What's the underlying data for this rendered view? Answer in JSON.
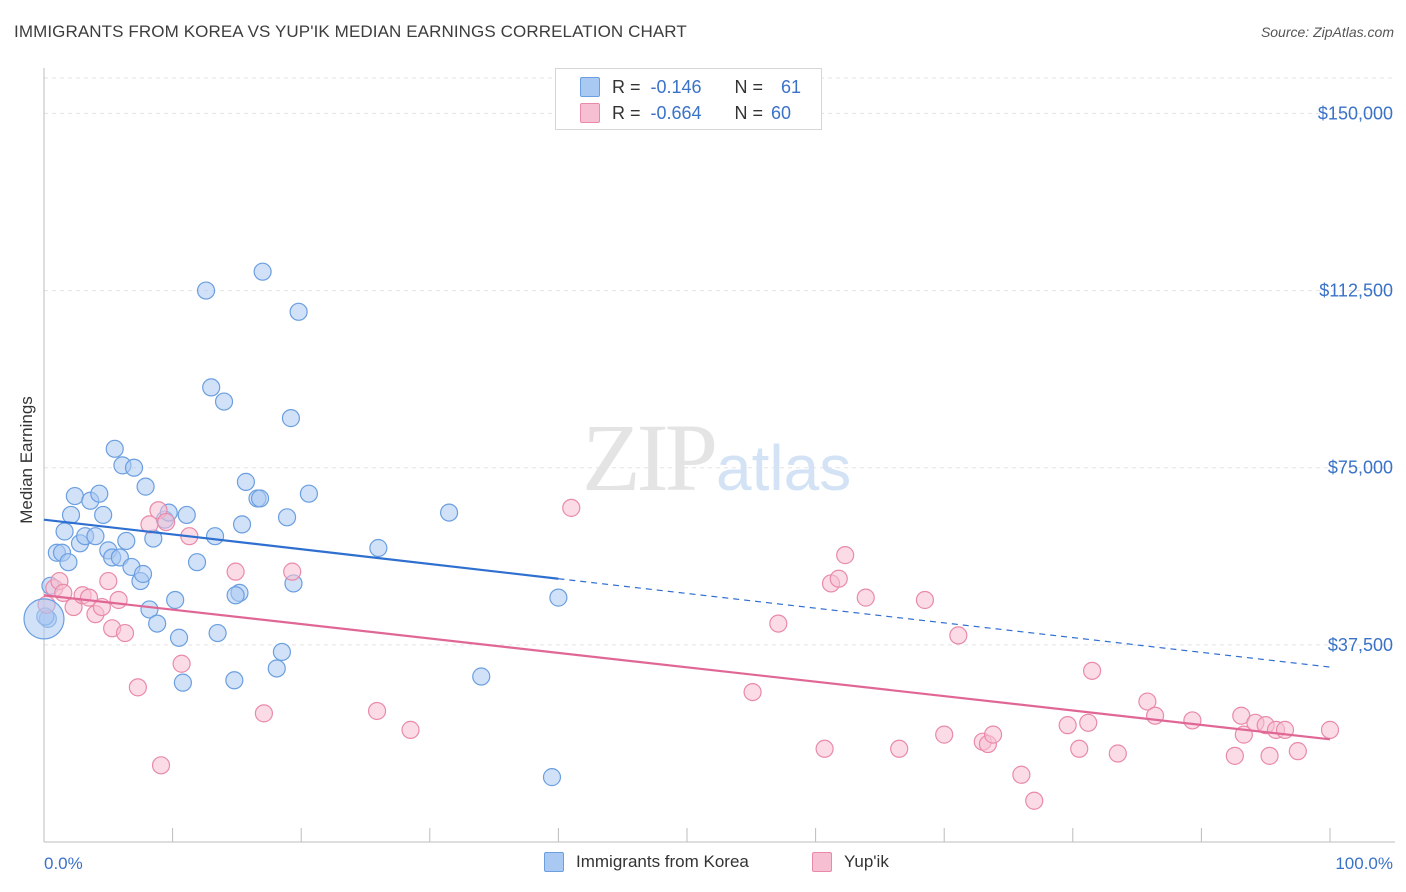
{
  "header": {
    "title": "IMMIGRANTS FROM KOREA VS YUP'IK MEDIAN EARNINGS CORRELATION CHART",
    "source": "Source: ZipAtlas.com"
  },
  "watermark": {
    "zip": "ZIP",
    "atlas": "atlas"
  },
  "stats": [
    {
      "r_label": "R =",
      "r_value": "-0.146",
      "n_label": "N =",
      "n_value": "61",
      "color": "#a9c8f2",
      "border": "#6b9fe0"
    },
    {
      "r_label": "R =",
      "r_value": "-0.664",
      "n_label": "N =",
      "n_value": "60",
      "color": "#f7c0d2",
      "border": "#e98aa9"
    }
  ],
  "legend": [
    {
      "label": "Immigrants from Korea",
      "color": "#a9c8f2",
      "border": "#6b9fe0"
    },
    {
      "label": "Yup'ik",
      "color": "#f7c0d2",
      "border": "#e98aa9"
    }
  ],
  "chart_data": {
    "type": "scatter",
    "xlabel": "",
    "ylabel": "Median Earnings",
    "xlim": [
      0,
      100
    ],
    "ylim": [
      0,
      157500
    ],
    "x_tick_labels": [
      "0.0%",
      "100.0%"
    ],
    "y_ticks": [
      37500,
      75000,
      112500,
      150000
    ],
    "y_tick_labels": [
      "$37,500",
      "$75,000",
      "$112,500",
      "$150,000"
    ],
    "grid": "horizontal dashed",
    "legend_position": "bottom",
    "series": [
      {
        "name": "Immigrants from Korea",
        "color": "#a9c8f2",
        "stroke": "#6b9fe0",
        "line_color": "#2f6fd0",
        "trend": {
          "x0": 0,
          "y0": 64000,
          "x1": 40,
          "y1": 51500,
          "x_end": 100,
          "y_end": 32800,
          "dashed_after": 40
        },
        "points": [
          [
            0.3,
            43000
          ],
          [
            0.5,
            50000
          ],
          [
            1,
            57000
          ],
          [
            1.4,
            57000
          ],
          [
            1.6,
            61500
          ],
          [
            1.9,
            55000
          ],
          [
            2.1,
            65000
          ],
          [
            2.4,
            69000
          ],
          [
            2.8,
            59000
          ],
          [
            3.2,
            60500
          ],
          [
            3.6,
            68000
          ],
          [
            4.0,
            60500
          ],
          [
            4.3,
            69500
          ],
          [
            4.6,
            65000
          ],
          [
            5.0,
            57500
          ],
          [
            5.3,
            56000
          ],
          [
            5.5,
            79000
          ],
          [
            5.9,
            56000
          ],
          [
            6.1,
            75500
          ],
          [
            6.4,
            59500
          ],
          [
            6.8,
            54000
          ],
          [
            7.0,
            75000
          ],
          [
            7.5,
            51000
          ],
          [
            7.7,
            52500
          ],
          [
            7.9,
            71000
          ],
          [
            8.2,
            45000
          ],
          [
            8.5,
            60000
          ],
          [
            8.8,
            42000
          ],
          [
            9.4,
            64000
          ],
          [
            9.7,
            65500
          ],
          [
            10.2,
            47000
          ],
          [
            10.5,
            39000
          ],
          [
            10.8,
            29500
          ],
          [
            11.1,
            65000
          ],
          [
            11.9,
            55000
          ],
          [
            12.6,
            112500
          ],
          [
            13.0,
            92000
          ],
          [
            13.3,
            60500
          ],
          [
            13.5,
            40000
          ],
          [
            14.0,
            89000
          ],
          [
            14.8,
            30000
          ],
          [
            15.2,
            48500
          ],
          [
            15.4,
            63000
          ],
          [
            15.7,
            72000
          ],
          [
            16.6,
            68500
          ],
          [
            16.8,
            68500
          ],
          [
            17.0,
            116500
          ],
          [
            18.1,
            32500
          ],
          [
            18.5,
            36000
          ],
          [
            18.9,
            64500
          ],
          [
            19.2,
            85500
          ],
          [
            19.4,
            50500
          ],
          [
            19.8,
            108000
          ],
          [
            20.6,
            69500
          ],
          [
            26.0,
            58000
          ],
          [
            31.5,
            65500
          ],
          [
            34.0,
            30800
          ],
          [
            39.5,
            9500
          ],
          [
            40.0,
            47500
          ],
          [
            0.1,
            43500
          ],
          [
            14.9,
            48000
          ]
        ]
      },
      {
        "name": "Yup'ik",
        "color": "#f7c0d2",
        "stroke": "#e98aa9",
        "line_color": "#e06795",
        "trend": {
          "x0": 0,
          "y0": 48000,
          "x1": 100,
          "y1": 17500
        },
        "points": [
          [
            0.2,
            46000
          ],
          [
            0.8,
            49500
          ],
          [
            1.2,
            51000
          ],
          [
            1.5,
            48500
          ],
          [
            2.3,
            45500
          ],
          [
            3.0,
            48000
          ],
          [
            3.5,
            47500
          ],
          [
            4.0,
            44000
          ],
          [
            4.5,
            45500
          ],
          [
            5.0,
            51000
          ],
          [
            5.3,
            41000
          ],
          [
            5.8,
            47000
          ],
          [
            6.3,
            40000
          ],
          [
            7.3,
            28500
          ],
          [
            8.2,
            63000
          ],
          [
            8.9,
            66000
          ],
          [
            9.1,
            12000
          ],
          [
            9.5,
            63500
          ],
          [
            10.7,
            33500
          ],
          [
            11.3,
            60500
          ],
          [
            14.9,
            53000
          ],
          [
            17.1,
            23000
          ],
          [
            19.3,
            53000
          ],
          [
            25.9,
            23500
          ],
          [
            28.5,
            19500
          ],
          [
            41.0,
            66500
          ],
          [
            55.1,
            27500
          ],
          [
            57.1,
            42000
          ],
          [
            60.7,
            15500
          ],
          [
            61.2,
            50500
          ],
          [
            61.8,
            51500
          ],
          [
            62.3,
            56500
          ],
          [
            63.9,
            47500
          ],
          [
            66.5,
            15500
          ],
          [
            68.5,
            47000
          ],
          [
            70.0,
            18500
          ],
          [
            71.1,
            39500
          ],
          [
            73.0,
            17000
          ],
          [
            73.4,
            16500
          ],
          [
            73.8,
            18500
          ],
          [
            76.0,
            10000
          ],
          [
            77.0,
            4500
          ],
          [
            79.6,
            20500
          ],
          [
            80.5,
            15500
          ],
          [
            81.2,
            21000
          ],
          [
            81.5,
            32000
          ],
          [
            83.5,
            14500
          ],
          [
            85.8,
            25500
          ],
          [
            86.4,
            22500
          ],
          [
            89.3,
            21500
          ],
          [
            92.6,
            14000
          ],
          [
            93.1,
            22500
          ],
          [
            93.3,
            18500
          ],
          [
            94.2,
            21000
          ],
          [
            95.0,
            20500
          ],
          [
            95.3,
            14000
          ],
          [
            95.8,
            19500
          ],
          [
            96.5,
            19500
          ],
          [
            97.5,
            15000
          ],
          [
            100.0,
            19500
          ]
        ]
      }
    ]
  }
}
